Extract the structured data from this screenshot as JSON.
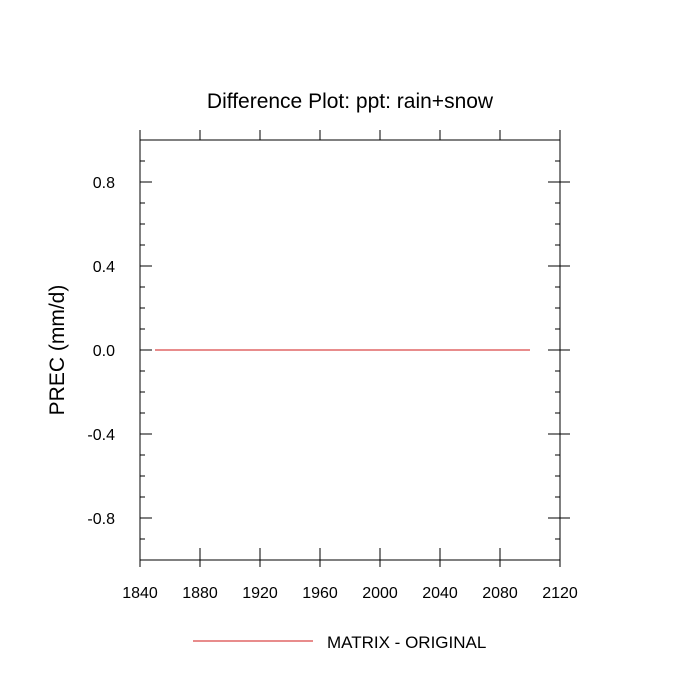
{
  "chart_data": {
    "type": "line",
    "title": "Difference Plot: ppt: rain+snow",
    "xlabel": "",
    "ylabel": "PREC  (mm/d)",
    "xlim": [
      1840,
      2120
    ],
    "ylim": [
      -1.0,
      1.0
    ],
    "x_ticks": [
      1840,
      1880,
      1920,
      1960,
      2000,
      2040,
      2080,
      2120
    ],
    "y_ticks": [
      -0.8,
      -0.4,
      0.0,
      0.4,
      0.8
    ],
    "y_tick_labels": [
      "-0.8",
      "-0.4",
      "0.0",
      "0.4",
      "0.8"
    ],
    "grid": false,
    "legend_position": "bottom",
    "series": [
      {
        "name": "MATRIX - ORIGINAL",
        "color": "#e06666",
        "x": [
          1850,
          1900,
          1950,
          2000,
          2050,
          2100
        ],
        "y": [
          0,
          0,
          0,
          0,
          0,
          0
        ]
      }
    ]
  }
}
